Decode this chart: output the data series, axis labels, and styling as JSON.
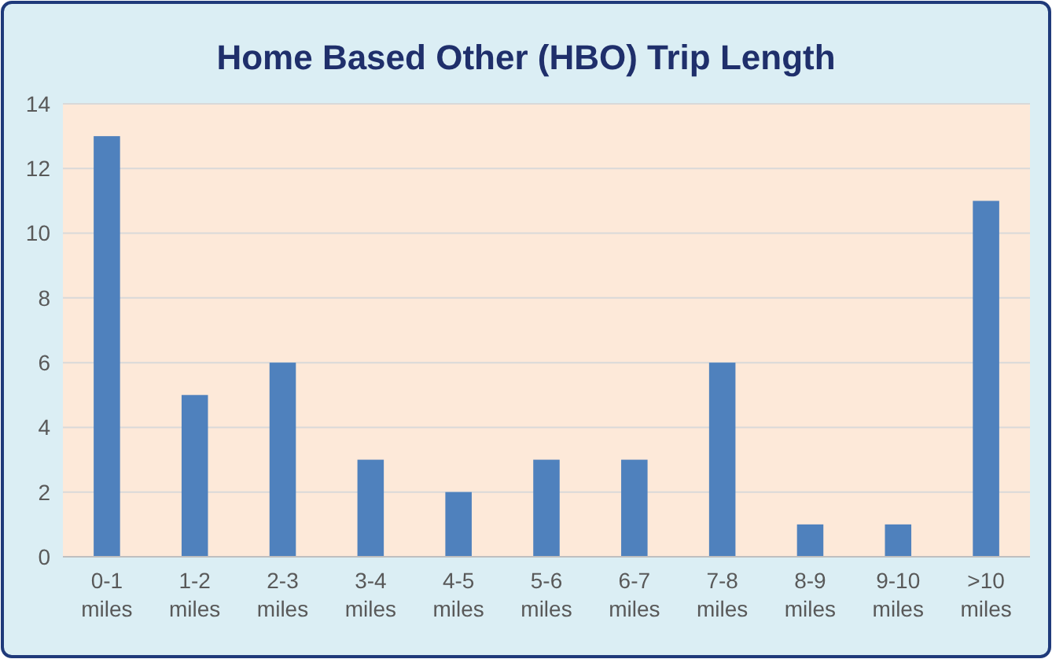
{
  "chart_data": {
    "type": "bar",
    "title": "Home Based Other (HBO) Trip Length",
    "categories": [
      "0-1 miles",
      "1-2 miles",
      "2-3 miles",
      "3-4 miles",
      "4-5 miles",
      "5-6 miles",
      "6-7 miles",
      "7-8 miles",
      "8-9 miles",
      "9-10 miles",
      ">10 miles"
    ],
    "values": [
      13,
      5,
      6,
      3,
      2,
      3,
      3,
      6,
      1,
      1,
      11
    ],
    "color": "#4f81bd",
    "ylim": [
      0,
      14
    ],
    "yticks": [
      0,
      2,
      4,
      6,
      8,
      10,
      12,
      14
    ],
    "grid": "y"
  }
}
